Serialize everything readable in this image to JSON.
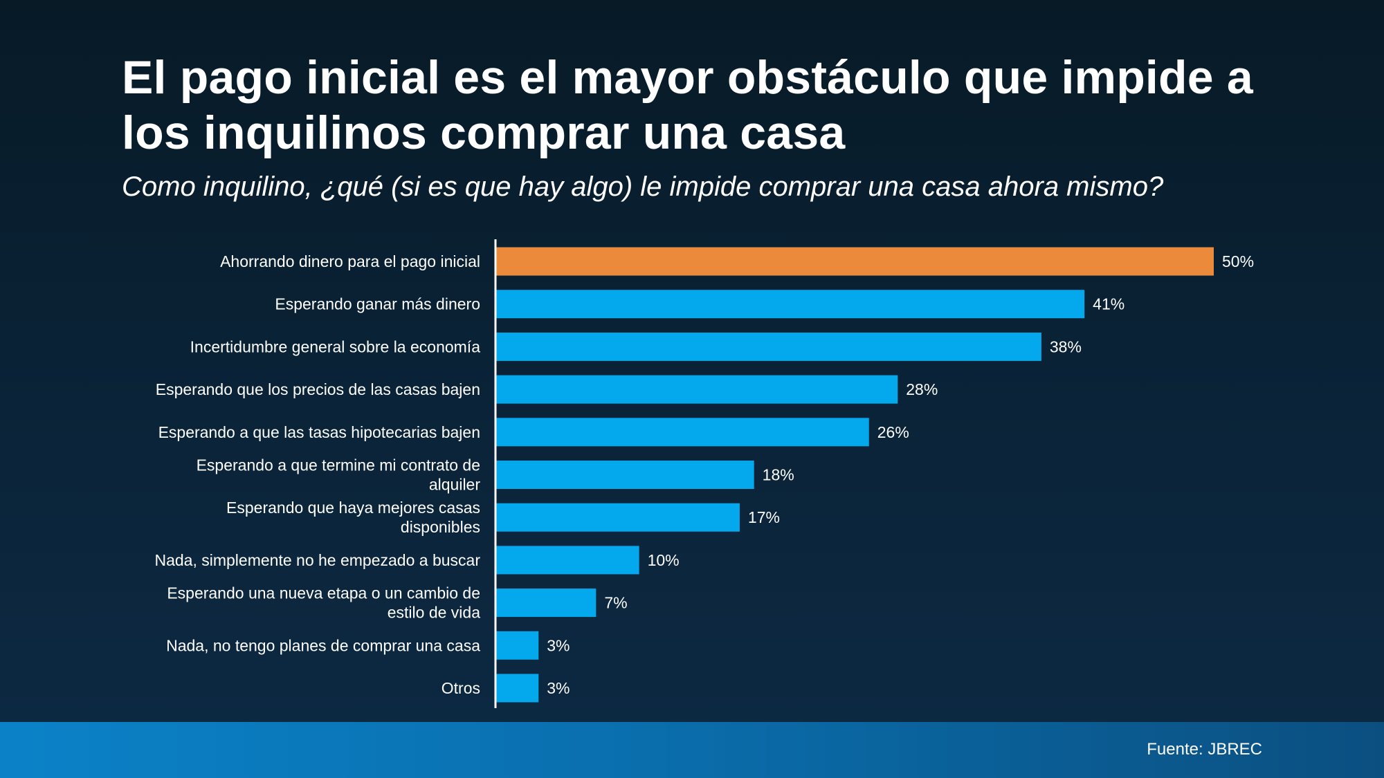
{
  "title": "El pago inicial es el mayor obstáculo que impide a los inquilinos comprar una casa",
  "subtitle": "Como inquilino, ¿qué (si es que hay algo) le impide comprar una casa ahora mismo?",
  "source": "Fuente: JBREC",
  "colors": {
    "highlight": "#ea8a3a",
    "bar": "#03a9ec",
    "axis": "#ffffff"
  },
  "chart_data": {
    "type": "bar",
    "orientation": "horizontal",
    "title": "El pago inicial es el mayor obstáculo que impide a los inquilinos comprar una casa",
    "subtitle": "Como inquilino, ¿qué (si es que hay algo) le impide comprar una casa ahora mismo?",
    "xlabel": "",
    "ylabel": "",
    "xlim": [
      0,
      50
    ],
    "unit": "%",
    "categories": [
      "Ahorrando dinero para el pago inicial",
      "Esperando ganar más dinero",
      "Incertidumbre general sobre la economía",
      "Esperando que los precios de las casas bajen",
      "Esperando a que las tasas hipotecarias bajen",
      "Esperando a que termine mi contrato de alquiler",
      "Esperando que haya mejores casas disponibles",
      "Nada, simplemente no he empezado a buscar",
      "Esperando una nueva etapa o un cambio de estilo de vida",
      "Nada, no tengo planes de comprar una casa",
      "Otros"
    ],
    "category_lines": [
      [
        "Ahorrando dinero para el pago inicial"
      ],
      [
        "Esperando ganar más dinero"
      ],
      [
        "Incertidumbre general sobre la economía"
      ],
      [
        "Esperando que los precios de las casas bajen"
      ],
      [
        "Esperando a que las tasas hipotecarias bajen"
      ],
      [
        "Esperando a que termine mi contrato de",
        "alquiler"
      ],
      [
        "Esperando que haya mejores casas",
        "disponibles"
      ],
      [
        "Nada, simplemente no he empezado a buscar"
      ],
      [
        "Esperando una nueva etapa o un cambio de",
        "estilo de vida"
      ],
      [
        "Nada, no tengo planes de comprar una casa"
      ],
      [
        "Otros"
      ]
    ],
    "values": [
      50,
      41,
      38,
      28,
      26,
      18,
      17,
      10,
      7,
      3,
      3
    ],
    "value_labels": [
      "50%",
      "41%",
      "38%",
      "28%",
      "26%",
      "18%",
      "17%",
      "10%",
      "7%",
      "3%",
      "3%"
    ],
    "highlight_index": 0,
    "grid": false,
    "legend": "none"
  }
}
